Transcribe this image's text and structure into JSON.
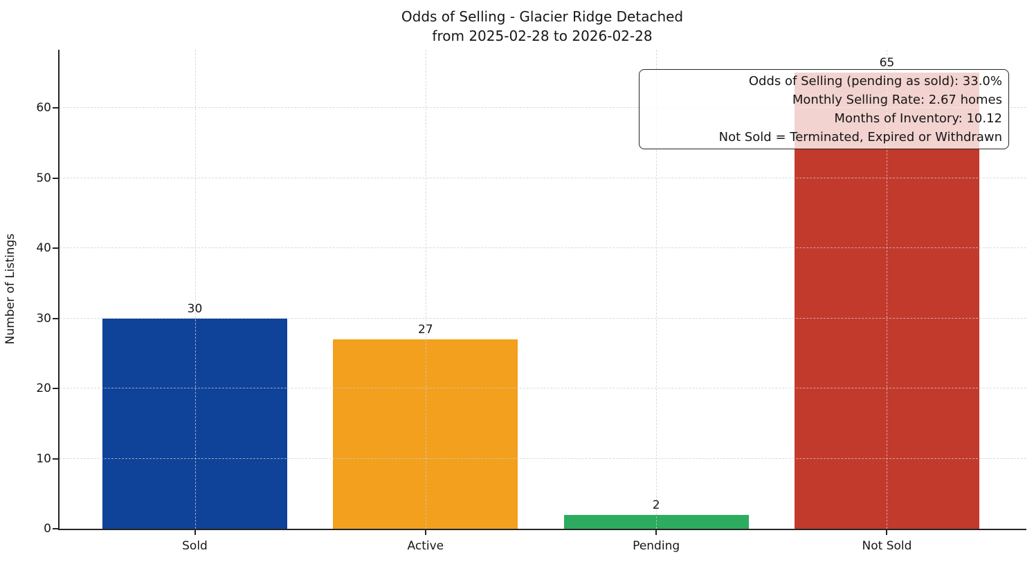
{
  "chart_data": {
    "type": "bar",
    "title": "Odds of Selling - Glacier Ridge Detached",
    "subtitle": "from 2025-02-28 to 2026-02-28",
    "categories": [
      "Sold",
      "Active",
      "Pending",
      "Not Sold"
    ],
    "values": [
      30,
      27,
      2,
      65
    ],
    "bar_value_labels": [
      "30",
      "27",
      "2",
      "65"
    ],
    "colors": [
      "#0f4299",
      "#f2a01d",
      "#2dab5f",
      "#c23a2c"
    ],
    "xlabel": "",
    "ylabel": "Number of Listings",
    "yticks": [
      0,
      10,
      20,
      30,
      40,
      50,
      60
    ],
    "ylim": [
      0,
      68.3
    ],
    "grid": "dashed",
    "legend": "none",
    "annotation": {
      "position": "top-right",
      "lines": [
        "Odds of Selling (pending as sold): 33.0%",
        "Monthly Selling Rate: 2.67 homes",
        "Months of Inventory: 10.12",
        "Not Sold = Terminated, Expired or Withdrawn"
      ]
    }
  }
}
